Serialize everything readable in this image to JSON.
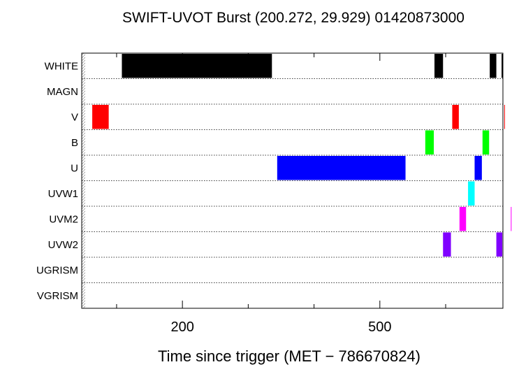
{
  "chart_data": {
    "type": "bar",
    "orientation": "horizontal-timeline",
    "title": "SWIFT-UVOT Burst (200.272, 29.929) 01420873000",
    "xlabel": "Time since trigger (MET − 786670824)",
    "ylabel": "",
    "xlim": [
      47,
      687
    ],
    "xticks_major": [
      200,
      500
    ],
    "xtick_labels": [
      "200",
      "500"
    ],
    "xticks_minor": [
      100,
      300,
      400,
      600
    ],
    "categories": [
      "WHITE",
      "MAGN",
      "V",
      "B",
      "U",
      "UVW1",
      "UVM2",
      "UVW2",
      "UGRISM",
      "VGRISM"
    ],
    "grid": "dotted horizontal row separators",
    "series": [
      {
        "filter": "WHITE",
        "color": "#000000",
        "intervals": [
          [
            108,
            336
          ],
          [
            583,
            596
          ],
          [
            667,
            677
          ],
          [
            685,
            687
          ]
        ]
      },
      {
        "filter": "MAGN",
        "color": "#000000",
        "intervals": []
      },
      {
        "filter": "V",
        "color": "#ff0000",
        "intervals": [
          [
            63,
            88
          ],
          [
            610,
            620
          ],
          [
            689,
            698
          ]
        ]
      },
      {
        "filter": "B",
        "color": "#00ff00",
        "intervals": [
          [
            569,
            582
          ],
          [
            656,
            666
          ]
        ]
      },
      {
        "filter": "U",
        "color": "#0000ff",
        "intervals": [
          [
            344,
            539
          ],
          [
            644,
            655
          ]
        ]
      },
      {
        "filter": "UVW1",
        "color": "#00ffff",
        "intervals": [
          [
            634,
            644
          ]
        ]
      },
      {
        "filter": "UVM2",
        "color": "#ff00ff",
        "intervals": [
          [
            621,
            631
          ],
          [
            699,
            708
          ]
        ]
      },
      {
        "filter": "UVW2",
        "color": "#8000ff",
        "intervals": [
          [
            596,
            608
          ],
          [
            677,
            686
          ]
        ]
      },
      {
        "filter": "UGRISM",
        "color": "#000000",
        "intervals": []
      },
      {
        "filter": "VGRISM",
        "color": "#000000",
        "intervals": []
      }
    ]
  }
}
